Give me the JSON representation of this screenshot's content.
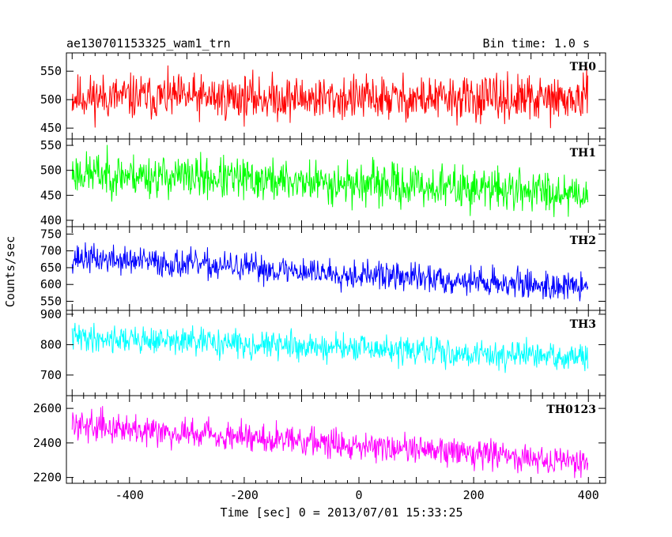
{
  "header": {
    "title": "ae130701153325_wam1_trn",
    "bin_time": "Bin time: 1.0 s"
  },
  "axes": {
    "ylabel": "Counts/sec",
    "xlabel": "Time [sec] 0 = 2013/07/01 15:33:25"
  },
  "chart_data": {
    "type": "line",
    "title": "ae130701153325_wam1_trn",
    "xlabel": "Time [sec] 0 = 2013/07/01 15:33:25",
    "ylabel": "Counts/sec",
    "xlim": [
      -510,
      430
    ],
    "x_ticks": [
      -400,
      -200,
      0,
      200,
      400
    ],
    "x_range": [
      -500,
      399
    ],
    "bin_time_s": 1.0,
    "panels": [
      {
        "name": "TH0",
        "color": "#ff0000",
        "ylim": [
          435,
          578
        ],
        "yticks": [
          450,
          500,
          550
        ],
        "mean_start": 505,
        "mean_end": 500,
        "spread": 28,
        "seed": 11
      },
      {
        "name": "TH1",
        "color": "#00ff00",
        "ylim": [
          392,
          558
        ],
        "yticks": [
          400,
          450,
          500,
          550
        ],
        "mean_start": 495,
        "mean_end": 455,
        "spread": 30,
        "seed": 23
      },
      {
        "name": "TH2",
        "color": "#0000ff",
        "ylim": [
          530,
          765
        ],
        "yticks": [
          550,
          600,
          650,
          700,
          750
        ],
        "mean_start": 680,
        "mean_end": 590,
        "spread": 30,
        "seed": 37
      },
      {
        "name": "TH3",
        "color": "#00ffff",
        "ylim": [
          640,
          905
        ],
        "yticks": [
          700,
          800,
          900
        ],
        "mean_start": 825,
        "mean_end": 755,
        "spread": 32,
        "seed": 41
      },
      {
        "name": "TH0123",
        "color": "#ff00ff",
        "ylim": [
          2180,
          2660
        ],
        "yticks": [
          2200,
          2400,
          2600
        ],
        "mean_start": 2510,
        "mean_end": 2290,
        "spread": 60,
        "seed": 59
      }
    ]
  }
}
